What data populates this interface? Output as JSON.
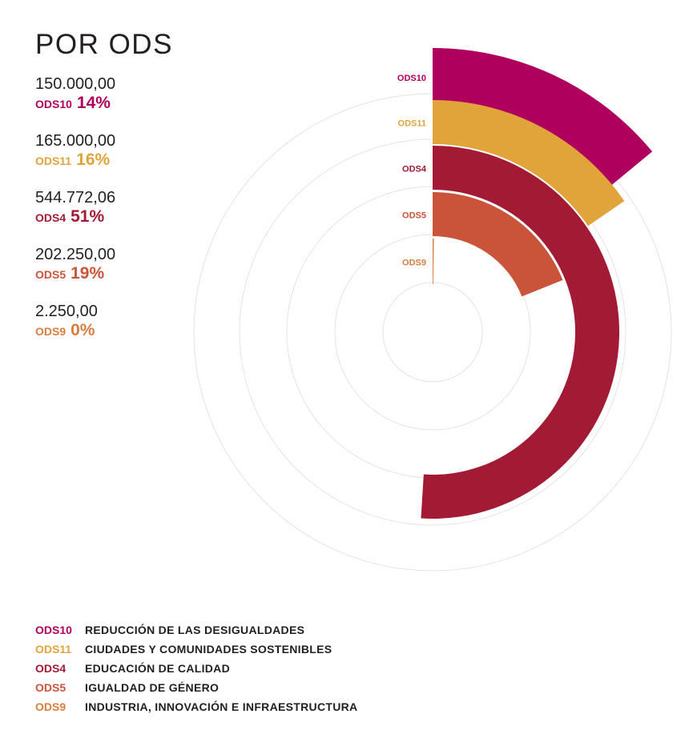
{
  "title": "POR ODS",
  "colors": {
    "ods10": "#b0005e",
    "ods11": "#e0a43a",
    "ods4": "#a31a35",
    "ods5": "#c9543a",
    "ods9": "#d87d3f",
    "grid": "#e3e3e3"
  },
  "stats": [
    {
      "amount": "150.000,00",
      "code": "ODS10",
      "pct": "14%"
    },
    {
      "amount": "165.000,00",
      "code": "ODS11",
      "pct": "16%"
    },
    {
      "amount": "544.772,06",
      "code": "ODS4",
      "pct": "51%"
    },
    {
      "amount": "202.250,00",
      "code": "ODS5",
      "pct": "19%"
    },
    {
      "amount": "2.250,00",
      "code": "ODS9",
      "pct": "0%"
    }
  ],
  "legend": [
    {
      "code": "ODS10",
      "name": "REDUCCIÓN DE LAS DESIGUALDADES"
    },
    {
      "code": "ODS11",
      "name": "CIUDADES Y COMUNIDADES SOSTENIBLES"
    },
    {
      "code": "ODS4",
      "name": "EDUCACIÓN DE CALIDAD"
    },
    {
      "code": "ODS5",
      "name": "IGUALDAD DE GÉNERO"
    },
    {
      "code": "ODS9",
      "name": "INDUSTRIA, INNOVACIÓN E INFRAESTRUCTURA"
    }
  ],
  "chart_data": {
    "type": "radial bar",
    "title": "POR ODS",
    "categories": [
      "ODS10",
      "ODS11",
      "ODS4",
      "ODS5",
      "ODS9"
    ],
    "values": [
      150000.0,
      165000.0,
      544772.06,
      202250.0,
      2250.0
    ],
    "percentages": [
      14,
      16,
      51,
      19,
      0
    ],
    "max_value": 1068272.06,
    "grid": true,
    "legend": "bottom-left"
  }
}
